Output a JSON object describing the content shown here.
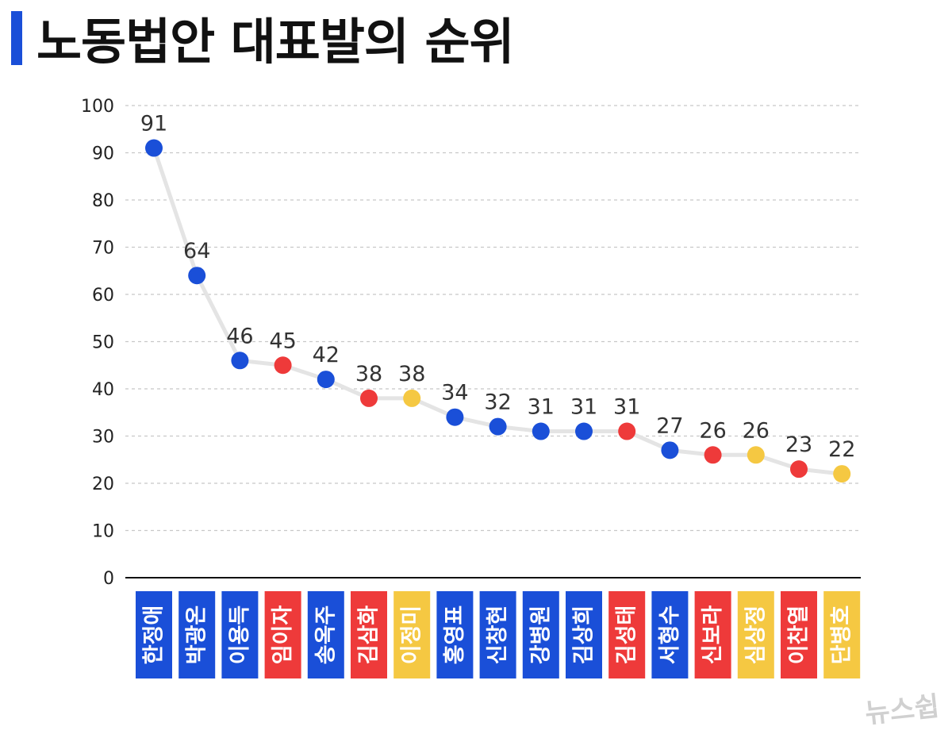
{
  "title": "노동법안 대표발의 순위",
  "watermark": "뉴스쉽",
  "colors": {
    "blue": "#1a4fd8",
    "red": "#ee3a3a",
    "yellow": "#f5c842",
    "line": "#e4e4e4",
    "grid": "#c8c8c8",
    "accent": "#1a4fd8"
  },
  "chart_data": {
    "type": "line",
    "title": "노동법안 대표발의 순위",
    "xlabel": "",
    "ylabel": "",
    "ylim": [
      0,
      100
    ],
    "yticks": [
      0,
      10,
      20,
      30,
      40,
      50,
      60,
      70,
      80,
      90,
      100
    ],
    "grid": true,
    "categories": [
      "한정애",
      "박광온",
      "이용득",
      "임이자",
      "송옥주",
      "김삼화",
      "이정미",
      "홍영표",
      "신창현",
      "강병원",
      "김상희",
      "김성태",
      "서형수",
      "신보라",
      "심상정",
      "이찬열",
      "단병호"
    ],
    "values": [
      91,
      64,
      46,
      45,
      42,
      38,
      38,
      34,
      32,
      31,
      31,
      31,
      27,
      26,
      26,
      23,
      22
    ],
    "point_colors": [
      "blue",
      "blue",
      "blue",
      "red",
      "blue",
      "red",
      "yellow",
      "blue",
      "blue",
      "blue",
      "blue",
      "red",
      "blue",
      "red",
      "yellow",
      "red",
      "yellow"
    ]
  }
}
